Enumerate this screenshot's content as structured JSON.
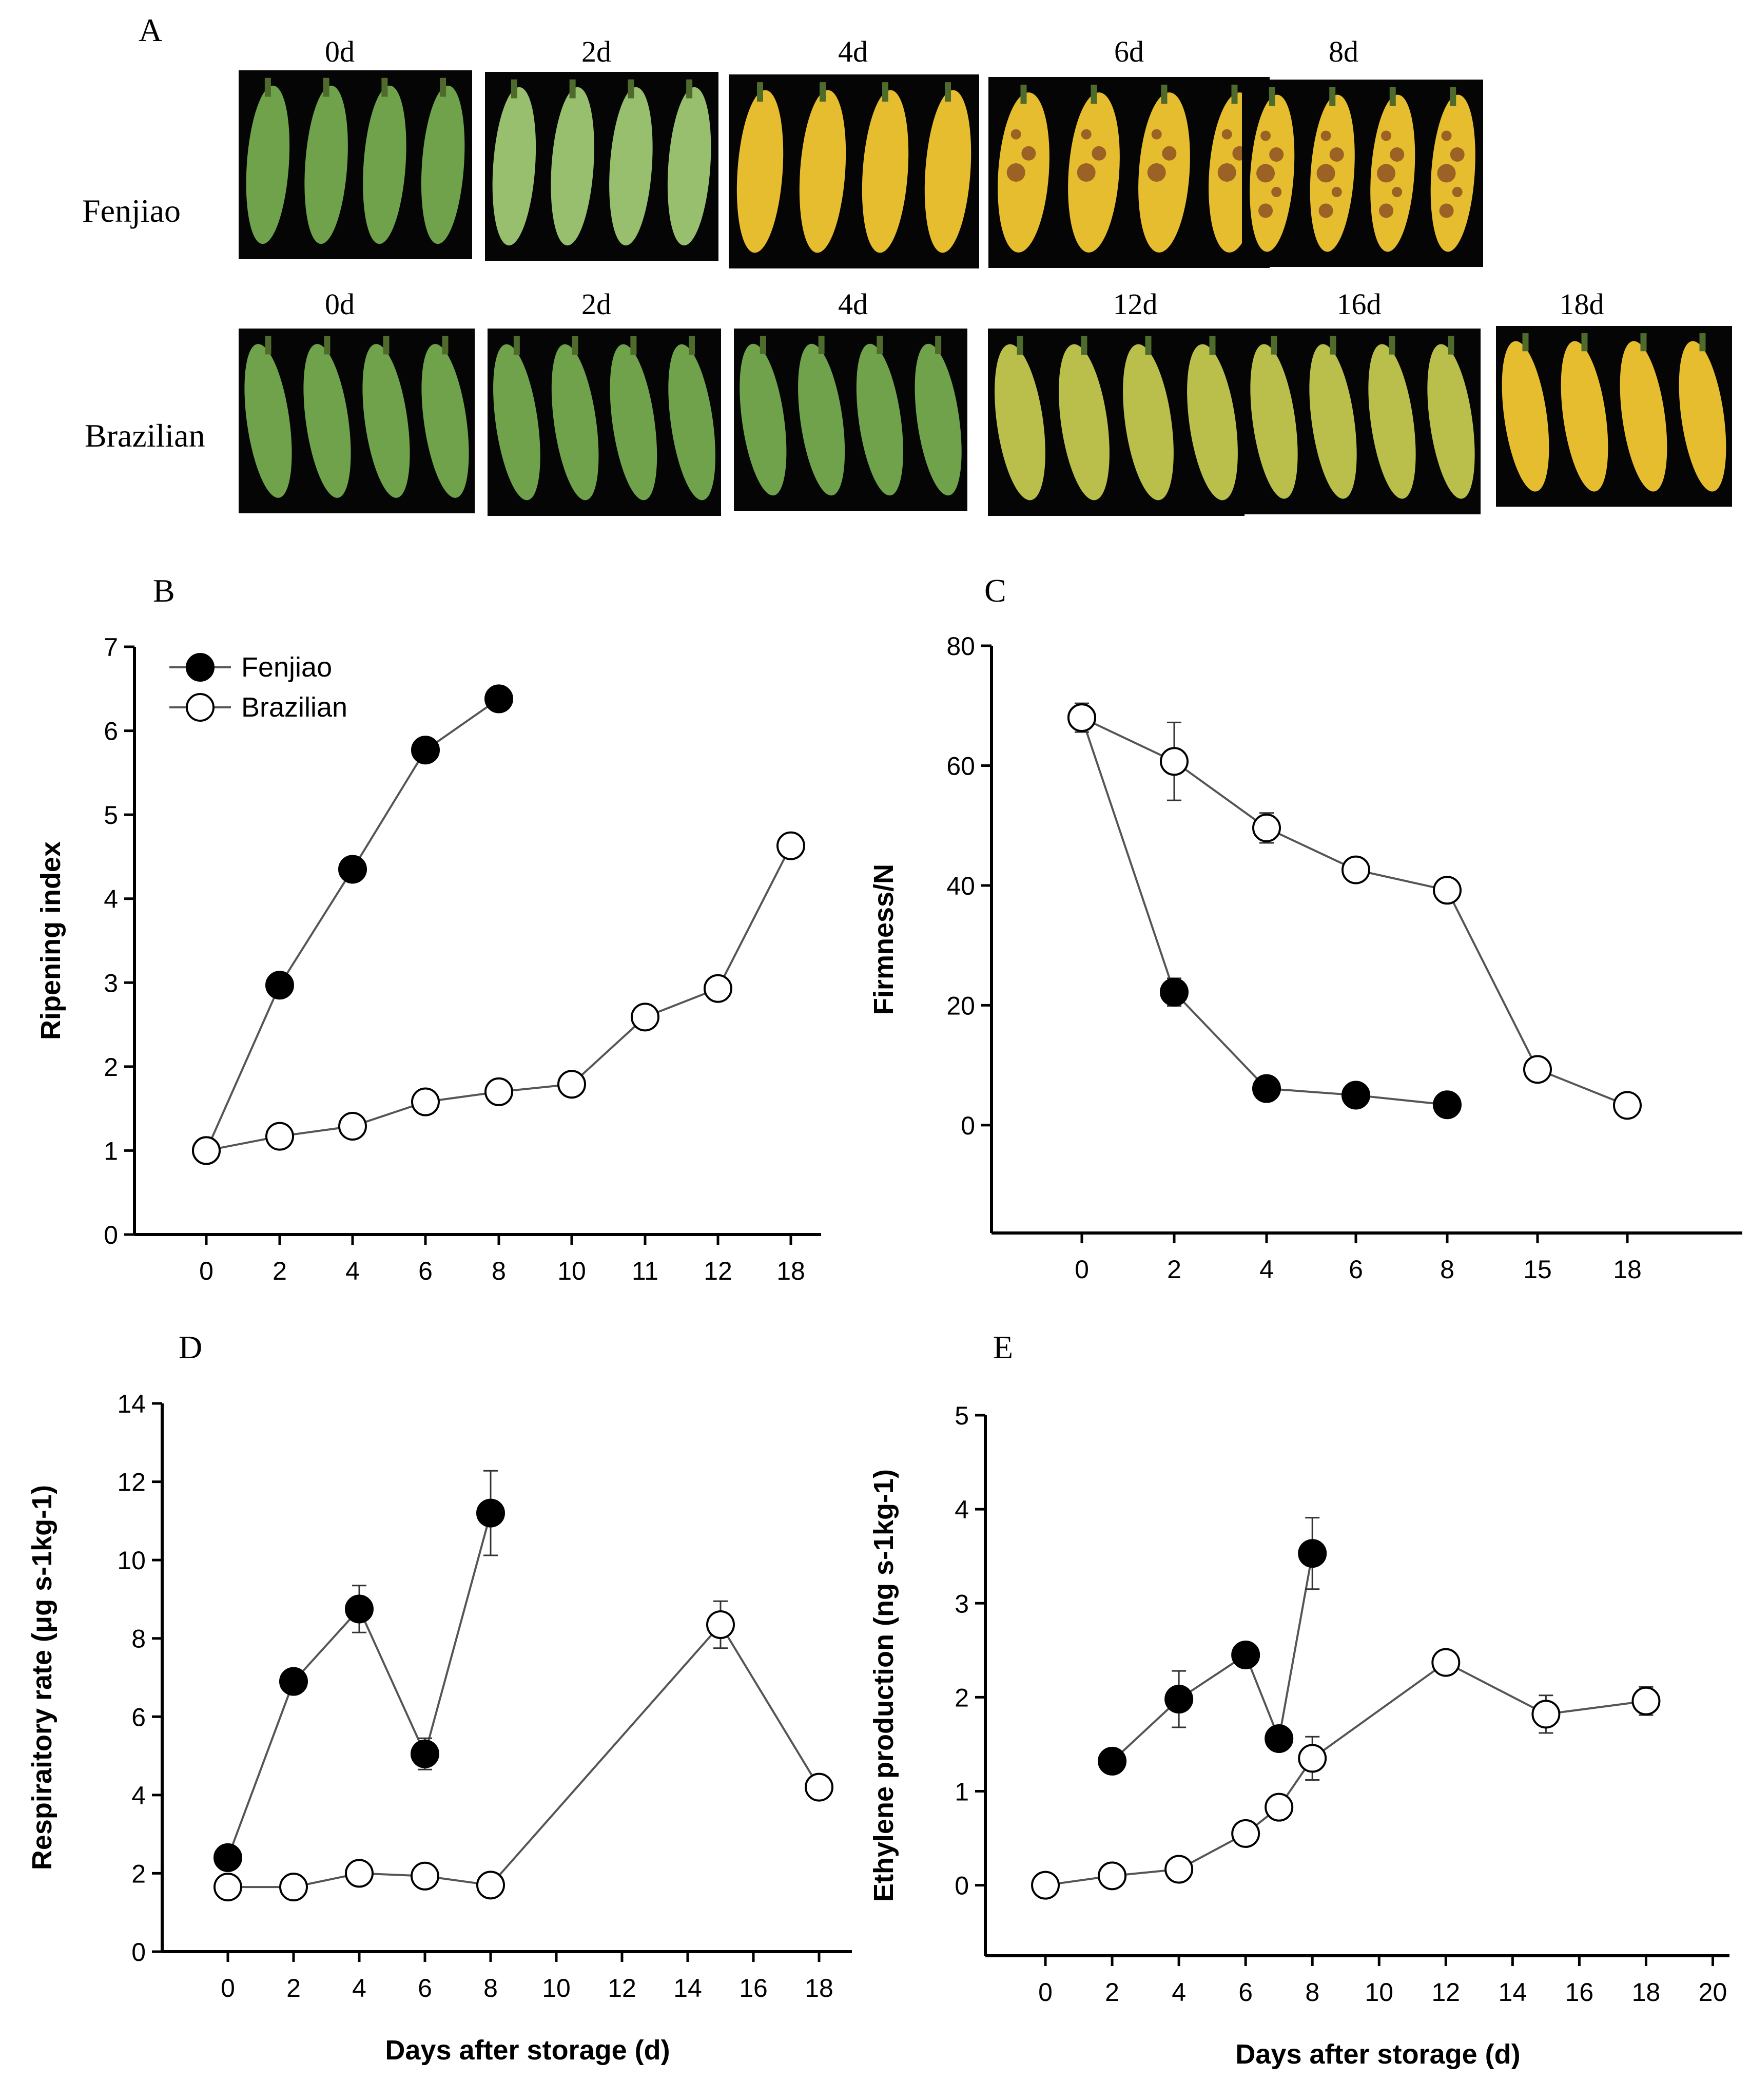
{
  "panel_a": {
    "label": "A",
    "rows": [
      {
        "cultivar": "Fenjiao",
        "photos": [
          {
            "day": "0d",
            "stage": "green"
          },
          {
            "day": "2d",
            "stage": "green-pale"
          },
          {
            "day": "4d",
            "stage": "yellow"
          },
          {
            "day": "6d",
            "stage": "yellow-spotted"
          },
          {
            "day": "8d",
            "stage": "yellow-brown"
          }
        ]
      },
      {
        "cultivar": "Brazilian",
        "photos": [
          {
            "day": "0d",
            "stage": "green"
          },
          {
            "day": "2d",
            "stage": "green"
          },
          {
            "day": "4d",
            "stage": "green"
          },
          {
            "day": "12d",
            "stage": "green-yellow"
          },
          {
            "day": "16d",
            "stage": "yellow-green"
          },
          {
            "day": "18d",
            "stage": "yellow"
          }
        ]
      }
    ]
  },
  "colors": {
    "peel_green": "#6fa24a",
    "peel_pale_green": "#97bf6e",
    "peel_yellow": "#e6bd2e",
    "peel_ripe": "#d9a820",
    "peel_yellow_green": "#b9bf4a",
    "speck": "#7a3b22",
    "photo_bg": "#050505",
    "axis": "#000000",
    "marker_fill_fenjiao": "#000000",
    "marker_fill_brazilian": "#ffffff"
  },
  "chart_data": [
    {
      "id": "B",
      "label": "B",
      "type": "line",
      "categorical_x": true,
      "categories": [
        "0",
        "2",
        "4",
        "6",
        "8",
        "10",
        "11",
        "12",
        "18"
      ],
      "ylabel": "Ripening index",
      "xlabel": "",
      "ylim": [
        0,
        7
      ],
      "yticks": [
        0,
        1,
        2,
        3,
        4,
        5,
        6,
        7
      ],
      "legend": {
        "position": "top-left",
        "entries": [
          "Fenjiao",
          "Brazilian"
        ]
      },
      "series": [
        {
          "name": "Fenjiao",
          "filled": true,
          "points": [
            {
              "x": "0",
              "y": 1.0
            },
            {
              "x": "2",
              "y": 2.97
            },
            {
              "x": "4",
              "y": 4.35
            },
            {
              "x": "6",
              "y": 5.77
            },
            {
              "x": "8",
              "y": 6.38
            }
          ]
        },
        {
          "name": "Brazilian",
          "filled": false,
          "points": [
            {
              "x": "0",
              "y": 1.0
            },
            {
              "x": "2",
              "y": 1.17
            },
            {
              "x": "4",
              "y": 1.29
            },
            {
              "x": "6",
              "y": 1.58
            },
            {
              "x": "8",
              "y": 1.7
            },
            {
              "x": "10",
              "y": 1.79
            },
            {
              "x": "11",
              "y": 2.59
            },
            {
              "x": "12",
              "y": 2.93
            },
            {
              "x": "18",
              "y": 4.63
            }
          ]
        }
      ]
    },
    {
      "id": "C",
      "label": "C",
      "type": "line",
      "categorical_x": true,
      "categories": [
        "0",
        "2",
        "4",
        "6",
        "8",
        "15",
        "18"
      ],
      "ylabel": "Firmness/N",
      "xlabel": "",
      "ylim": [
        -18,
        80
      ],
      "yticks": [
        0,
        20,
        40,
        60,
        80
      ],
      "series": [
        {
          "name": "Fenjiao",
          "filled": true,
          "points": [
            {
              "x": "0",
              "y": 68.0
            },
            {
              "x": "2",
              "y": 22.2,
              "err": 2.3
            },
            {
              "x": "4",
              "y": 6.1
            },
            {
              "x": "6",
              "y": 5.0
            },
            {
              "x": "8",
              "y": 3.4
            }
          ]
        },
        {
          "name": "Brazilian",
          "filled": false,
          "points": [
            {
              "x": "0",
              "y": 68.0,
              "err": 2.4
            },
            {
              "x": "2",
              "y": 60.7,
              "err": 6.5
            },
            {
              "x": "4",
              "y": 49.6,
              "err": 2.5
            },
            {
              "x": "6",
              "y": 42.6
            },
            {
              "x": "8",
              "y": 39.2
            },
            {
              "x": "15",
              "y": 9.3
            },
            {
              "x": "18",
              "y": 3.3
            }
          ]
        }
      ]
    },
    {
      "id": "D",
      "label": "D",
      "type": "line",
      "categorical_x": false,
      "xlim": [
        -2,
        19
      ],
      "xticks": [
        0,
        2,
        4,
        6,
        8,
        10,
        12,
        14,
        16,
        18
      ],
      "xlabel": "Days after storage (d)",
      "ylabel": "Respiraitory rate (μg s-1kg-1)",
      "ylim": [
        0,
        14
      ],
      "yticks": [
        0,
        2,
        4,
        6,
        8,
        10,
        12,
        14
      ],
      "series": [
        {
          "name": "Fenjiao",
          "filled": true,
          "points": [
            {
              "x": 0,
              "y": 2.4
            },
            {
              "x": 2,
              "y": 6.9
            },
            {
              "x": 4,
              "y": 8.75,
              "err": 0.6
            },
            {
              "x": 6,
              "y": 5.05,
              "err": 0.4
            },
            {
              "x": 8,
              "y": 11.2,
              "err": 1.08
            }
          ]
        },
        {
          "name": "Brazilian",
          "filled": false,
          "points": [
            {
              "x": 0,
              "y": 1.65
            },
            {
              "x": 2,
              "y": 1.65
            },
            {
              "x": 4,
              "y": 2.0
            },
            {
              "x": 6,
              "y": 1.93
            },
            {
              "x": 8,
              "y": 1.7
            },
            {
              "x": 15,
              "y": 8.35,
              "err": 0.6
            },
            {
              "x": 18,
              "y": 4.2
            }
          ]
        }
      ]
    },
    {
      "id": "E",
      "label": "E",
      "type": "line",
      "categorical_x": false,
      "xlim": [
        -1.8,
        20.5
      ],
      "xticks": [
        0,
        2,
        4,
        6,
        8,
        10,
        12,
        14,
        16,
        18,
        20
      ],
      "xlabel": "Days after storage (d)",
      "ylabel": "Ethylene production (ng s-1kg-1)",
      "ylim": [
        -0.75,
        5
      ],
      "yticks": [
        0,
        1,
        2,
        3,
        4,
        5
      ],
      "series": [
        {
          "name": "Fenjiao",
          "filled": true,
          "points": [
            {
              "x": 2,
              "y": 1.32
            },
            {
              "x": 4,
              "y": 1.98,
              "err": 0.3
            },
            {
              "x": 6,
              "y": 2.45
            },
            {
              "x": 7,
              "y": 1.56
            },
            {
              "x": 8,
              "y": 3.53,
              "err": 0.38
            }
          ]
        },
        {
          "name": "Brazilian",
          "filled": false,
          "points": [
            {
              "x": 0,
              "y": 0.0
            },
            {
              "x": 2,
              "y": 0.1
            },
            {
              "x": 4,
              "y": 0.17
            },
            {
              "x": 6,
              "y": 0.55
            },
            {
              "x": 7,
              "y": 0.83
            },
            {
              "x": 8,
              "y": 1.35,
              "err": 0.23
            },
            {
              "x": 12,
              "y": 2.37
            },
            {
              "x": 15,
              "y": 1.82,
              "err": 0.2
            },
            {
              "x": 18,
              "y": 1.96,
              "err": 0.15
            }
          ]
        }
      ]
    }
  ]
}
